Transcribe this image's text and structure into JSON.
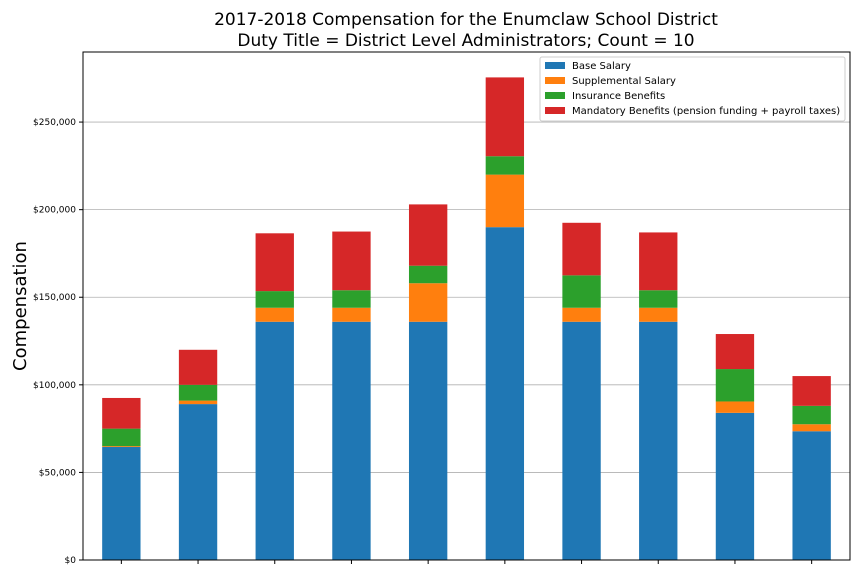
{
  "chart_data": {
    "type": "bar",
    "stacked": true,
    "title": "2017-2018 Compensation for the Enumclaw School District",
    "subtitle": "Duty Title = District Level Administrators; Count = 10",
    "xlabel": "",
    "ylabel": "Compensation",
    "ylim": [
      0,
      290000
    ],
    "yticks": [
      0,
      50000,
      100000,
      150000,
      200000,
      250000
    ],
    "ytick_labels": [
      "$0",
      "$50,000",
      "$100,000",
      "$150,000",
      "$200,000",
      "$250,000"
    ],
    "grid": "horizontal",
    "legend_position": "top-right",
    "categories": [
      "",
      "",
      "",
      "",
      "",
      "",
      "",
      "",
      "",
      ""
    ],
    "series": [
      {
        "name": "Base Salary",
        "color": "#1f77b4",
        "values": [
          64500,
          89000,
          136000,
          136000,
          136000,
          190000,
          136000,
          136000,
          84000,
          73500
        ]
      },
      {
        "name": "Supplemental Salary",
        "color": "#ff7f0e",
        "values": [
          500,
          2000,
          8000,
          8000,
          22000,
          30000,
          8000,
          8000,
          6500,
          4000
        ]
      },
      {
        "name": "Insurance Benefits",
        "color": "#2ca02c",
        "values": [
          10000,
          9000,
          9500,
          10000,
          10000,
          10500,
          18500,
          10000,
          18500,
          10500
        ]
      },
      {
        "name": "Mandatory Benefits (pension funding + payroll taxes)",
        "color": "#d62728",
        "values": [
          17500,
          20000,
          33000,
          33500,
          35000,
          45000,
          30000,
          33000,
          20000,
          17000
        ]
      }
    ]
  }
}
